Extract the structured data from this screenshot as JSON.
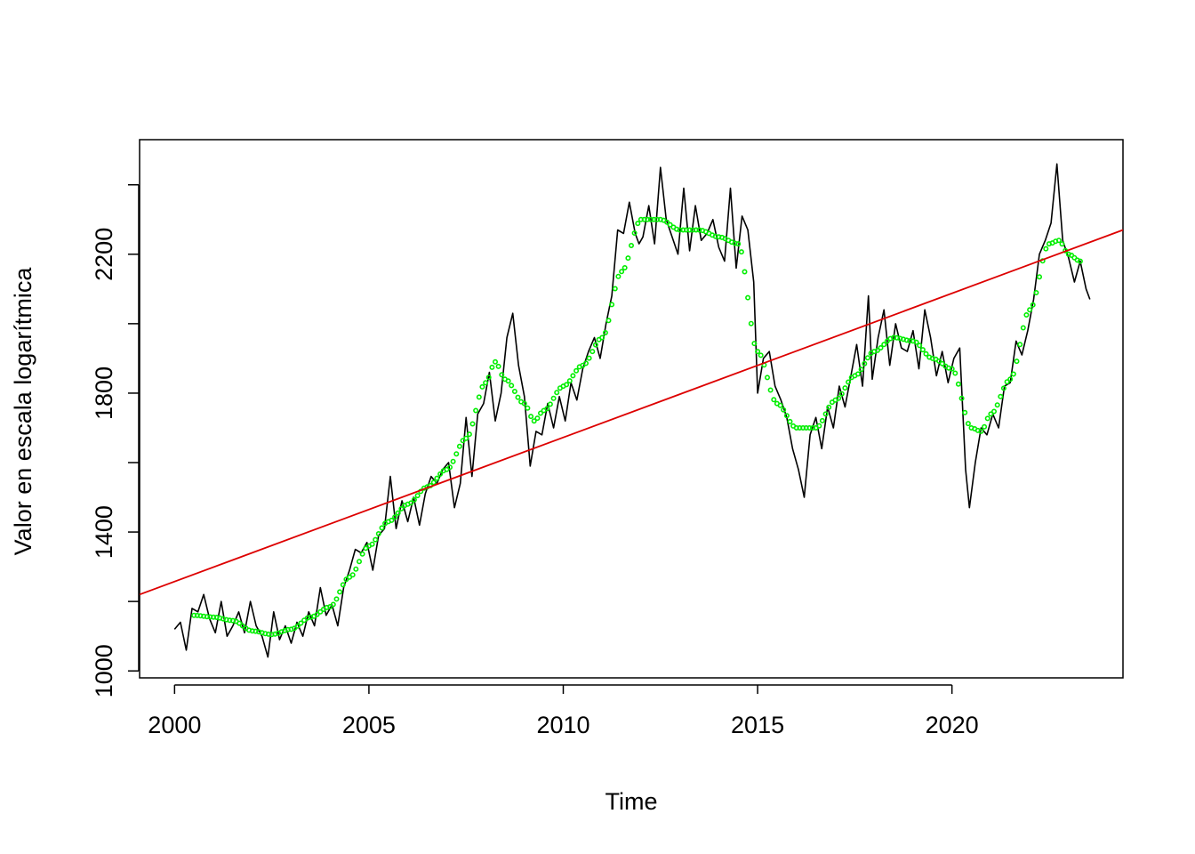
{
  "chart_data": {
    "type": "line",
    "title": "",
    "xlabel": "Time",
    "ylabel": "Valor en escala logarítmica",
    "xlim": [
      1999.1,
      2024.4
    ],
    "ylim": [
      980,
      2530
    ],
    "x_ticks": [
      2000,
      2005,
      2010,
      2015,
      2020
    ],
    "x_tick_labels": [
      "2000",
      "2005",
      "2010",
      "2015",
      "2020"
    ],
    "y_ticks": [
      1000,
      1400,
      1800,
      2200
    ],
    "y_tick_labels": [
      "1000",
      "1400",
      "1800",
      "2200"
    ],
    "y_minor_ticks": [
      1200,
      1600,
      2000,
      2400
    ],
    "grid": false,
    "legend": "none",
    "series": [
      {
        "style": "line",
        "color": "#000000",
        "points": [
          [
            2000.0,
            1120
          ],
          [
            2000.15,
            1140
          ],
          [
            2000.3,
            1060
          ],
          [
            2000.45,
            1180
          ],
          [
            2000.6,
            1170
          ],
          [
            2000.75,
            1220
          ],
          [
            2000.9,
            1150
          ],
          [
            2001.05,
            1110
          ],
          [
            2001.2,
            1200
          ],
          [
            2001.35,
            1100
          ],
          [
            2001.5,
            1130
          ],
          [
            2001.65,
            1170
          ],
          [
            2001.8,
            1110
          ],
          [
            2001.95,
            1200
          ],
          [
            2002.1,
            1130
          ],
          [
            2002.25,
            1100
          ],
          [
            2002.4,
            1040
          ],
          [
            2002.55,
            1170
          ],
          [
            2002.7,
            1090
          ],
          [
            2002.85,
            1130
          ],
          [
            2003.0,
            1080
          ],
          [
            2003.15,
            1140
          ],
          [
            2003.3,
            1100
          ],
          [
            2003.45,
            1170
          ],
          [
            2003.6,
            1130
          ],
          [
            2003.75,
            1240
          ],
          [
            2003.9,
            1160
          ],
          [
            2004.05,
            1190
          ],
          [
            2004.2,
            1130
          ],
          [
            2004.35,
            1240
          ],
          [
            2004.5,
            1290
          ],
          [
            2004.65,
            1350
          ],
          [
            2004.8,
            1340
          ],
          [
            2004.95,
            1370
          ],
          [
            2005.1,
            1290
          ],
          [
            2005.25,
            1390
          ],
          [
            2005.4,
            1410
          ],
          [
            2005.55,
            1560
          ],
          [
            2005.7,
            1410
          ],
          [
            2005.85,
            1490
          ],
          [
            2006.0,
            1430
          ],
          [
            2006.15,
            1500
          ],
          [
            2006.3,
            1420
          ],
          [
            2006.45,
            1510
          ],
          [
            2006.6,
            1560
          ],
          [
            2006.75,
            1540
          ],
          [
            2006.9,
            1580
          ],
          [
            2007.05,
            1600
          ],
          [
            2007.2,
            1470
          ],
          [
            2007.35,
            1540
          ],
          [
            2007.5,
            1730
          ],
          [
            2007.65,
            1560
          ],
          [
            2007.8,
            1740
          ],
          [
            2007.95,
            1770
          ],
          [
            2008.1,
            1860
          ],
          [
            2008.25,
            1720
          ],
          [
            2008.4,
            1800
          ],
          [
            2008.55,
            1960
          ],
          [
            2008.7,
            2030
          ],
          [
            2008.85,
            1880
          ],
          [
            2009.0,
            1790
          ],
          [
            2009.15,
            1590
          ],
          [
            2009.3,
            1690
          ],
          [
            2009.45,
            1680
          ],
          [
            2009.6,
            1770
          ],
          [
            2009.75,
            1700
          ],
          [
            2009.9,
            1790
          ],
          [
            2010.05,
            1720
          ],
          [
            2010.2,
            1830
          ],
          [
            2010.35,
            1780
          ],
          [
            2010.5,
            1870
          ],
          [
            2010.65,
            1920
          ],
          [
            2010.8,
            1960
          ],
          [
            2010.95,
            1900
          ],
          [
            2011.1,
            2000
          ],
          [
            2011.25,
            2080
          ],
          [
            2011.4,
            2270
          ],
          [
            2011.55,
            2260
          ],
          [
            2011.7,
            2350
          ],
          [
            2011.85,
            2260
          ],
          [
            2011.95,
            2230
          ],
          [
            2012.05,
            2250
          ],
          [
            2012.2,
            2340
          ],
          [
            2012.35,
            2230
          ],
          [
            2012.5,
            2450
          ],
          [
            2012.65,
            2300
          ],
          [
            2012.8,
            2250
          ],
          [
            2012.95,
            2200
          ],
          [
            2013.1,
            2390
          ],
          [
            2013.25,
            2210
          ],
          [
            2013.4,
            2340
          ],
          [
            2013.55,
            2240
          ],
          [
            2013.7,
            2260
          ],
          [
            2013.85,
            2300
          ],
          [
            2014.0,
            2220
          ],
          [
            2014.15,
            2180
          ],
          [
            2014.3,
            2390
          ],
          [
            2014.45,
            2160
          ],
          [
            2014.6,
            2310
          ],
          [
            2014.75,
            2270
          ],
          [
            2014.9,
            2120
          ],
          [
            2015.0,
            1800
          ],
          [
            2015.15,
            1900
          ],
          [
            2015.3,
            1920
          ],
          [
            2015.45,
            1820
          ],
          [
            2015.6,
            1780
          ],
          [
            2015.75,
            1730
          ],
          [
            2015.9,
            1640
          ],
          [
            2016.05,
            1580
          ],
          [
            2016.2,
            1500
          ],
          [
            2016.35,
            1680
          ],
          [
            2016.5,
            1730
          ],
          [
            2016.65,
            1640
          ],
          [
            2016.8,
            1760
          ],
          [
            2016.95,
            1700
          ],
          [
            2017.1,
            1820
          ],
          [
            2017.25,
            1760
          ],
          [
            2017.4,
            1850
          ],
          [
            2017.55,
            1940
          ],
          [
            2017.7,
            1820
          ],
          [
            2017.85,
            2080
          ],
          [
            2017.95,
            1840
          ],
          [
            2018.1,
            1960
          ],
          [
            2018.25,
            2040
          ],
          [
            2018.4,
            1880
          ],
          [
            2018.55,
            2000
          ],
          [
            2018.7,
            1930
          ],
          [
            2018.85,
            1920
          ],
          [
            2019.0,
            1980
          ],
          [
            2019.15,
            1870
          ],
          [
            2019.3,
            2040
          ],
          [
            2019.45,
            1960
          ],
          [
            2019.6,
            1850
          ],
          [
            2019.75,
            1920
          ],
          [
            2019.9,
            1830
          ],
          [
            2020.05,
            1900
          ],
          [
            2020.2,
            1930
          ],
          [
            2020.35,
            1580
          ],
          [
            2020.45,
            1470
          ],
          [
            2020.6,
            1600
          ],
          [
            2020.75,
            1700
          ],
          [
            2020.9,
            1680
          ],
          [
            2021.05,
            1740
          ],
          [
            2021.2,
            1700
          ],
          [
            2021.35,
            1820
          ],
          [
            2021.5,
            1830
          ],
          [
            2021.65,
            1950
          ],
          [
            2021.8,
            1910
          ],
          [
            2021.95,
            1980
          ],
          [
            2022.1,
            2070
          ],
          [
            2022.25,
            2200
          ],
          [
            2022.4,
            2240
          ],
          [
            2022.55,
            2290
          ],
          [
            2022.7,
            2460
          ],
          [
            2022.85,
            2240
          ],
          [
            2023.0,
            2190
          ],
          [
            2023.15,
            2120
          ],
          [
            2023.3,
            2180
          ],
          [
            2023.45,
            2100
          ],
          [
            2023.55,
            2070
          ]
        ]
      },
      {
        "style": "points",
        "color": "#00ee00",
        "points": [
          [
            2000.5,
            1160
          ],
          [
            2001.0,
            1155
          ],
          [
            2001.5,
            1145
          ],
          [
            2002.0,
            1115
          ],
          [
            2002.5,
            1105
          ],
          [
            2003.0,
            1120
          ],
          [
            2003.5,
            1155
          ],
          [
            2004.0,
            1185
          ],
          [
            2004.5,
            1270
          ],
          [
            2005.0,
            1360
          ],
          [
            2005.5,
            1430
          ],
          [
            2006.0,
            1480
          ],
          [
            2006.5,
            1530
          ],
          [
            2007.0,
            1580
          ],
          [
            2007.5,
            1670
          ],
          [
            2008.0,
            1830
          ],
          [
            2008.25,
            1890
          ],
          [
            2008.5,
            1840
          ],
          [
            2009.0,
            1770
          ],
          [
            2009.25,
            1720
          ],
          [
            2009.5,
            1750
          ],
          [
            2010.0,
            1820
          ],
          [
            2010.5,
            1880
          ],
          [
            2011.0,
            1960
          ],
          [
            2011.5,
            2150
          ],
          [
            2012.0,
            2300
          ],
          [
            2012.5,
            2300
          ],
          [
            2013.0,
            2270
          ],
          [
            2013.5,
            2270
          ],
          [
            2014.0,
            2250
          ],
          [
            2014.5,
            2230
          ],
          [
            2015.0,
            1920
          ],
          [
            2015.5,
            1770
          ],
          [
            2016.0,
            1700
          ],
          [
            2016.5,
            1700
          ],
          [
            2017.0,
            1780
          ],
          [
            2017.5,
            1850
          ],
          [
            2018.0,
            1920
          ],
          [
            2018.5,
            1960
          ],
          [
            2019.0,
            1950
          ],
          [
            2019.5,
            1900
          ],
          [
            2020.0,
            1870
          ],
          [
            2020.5,
            1700
          ],
          [
            2020.75,
            1690
          ],
          [
            2021.0,
            1740
          ],
          [
            2021.5,
            1840
          ],
          [
            2022.0,
            2040
          ],
          [
            2022.5,
            2230
          ],
          [
            2022.75,
            2240
          ],
          [
            2023.0,
            2200
          ],
          [
            2023.3,
            2180
          ]
        ]
      },
      {
        "style": "line",
        "color": "#dd0000",
        "points": [
          [
            1999.1,
            1220
          ],
          [
            2024.4,
            2270
          ]
        ]
      }
    ]
  }
}
